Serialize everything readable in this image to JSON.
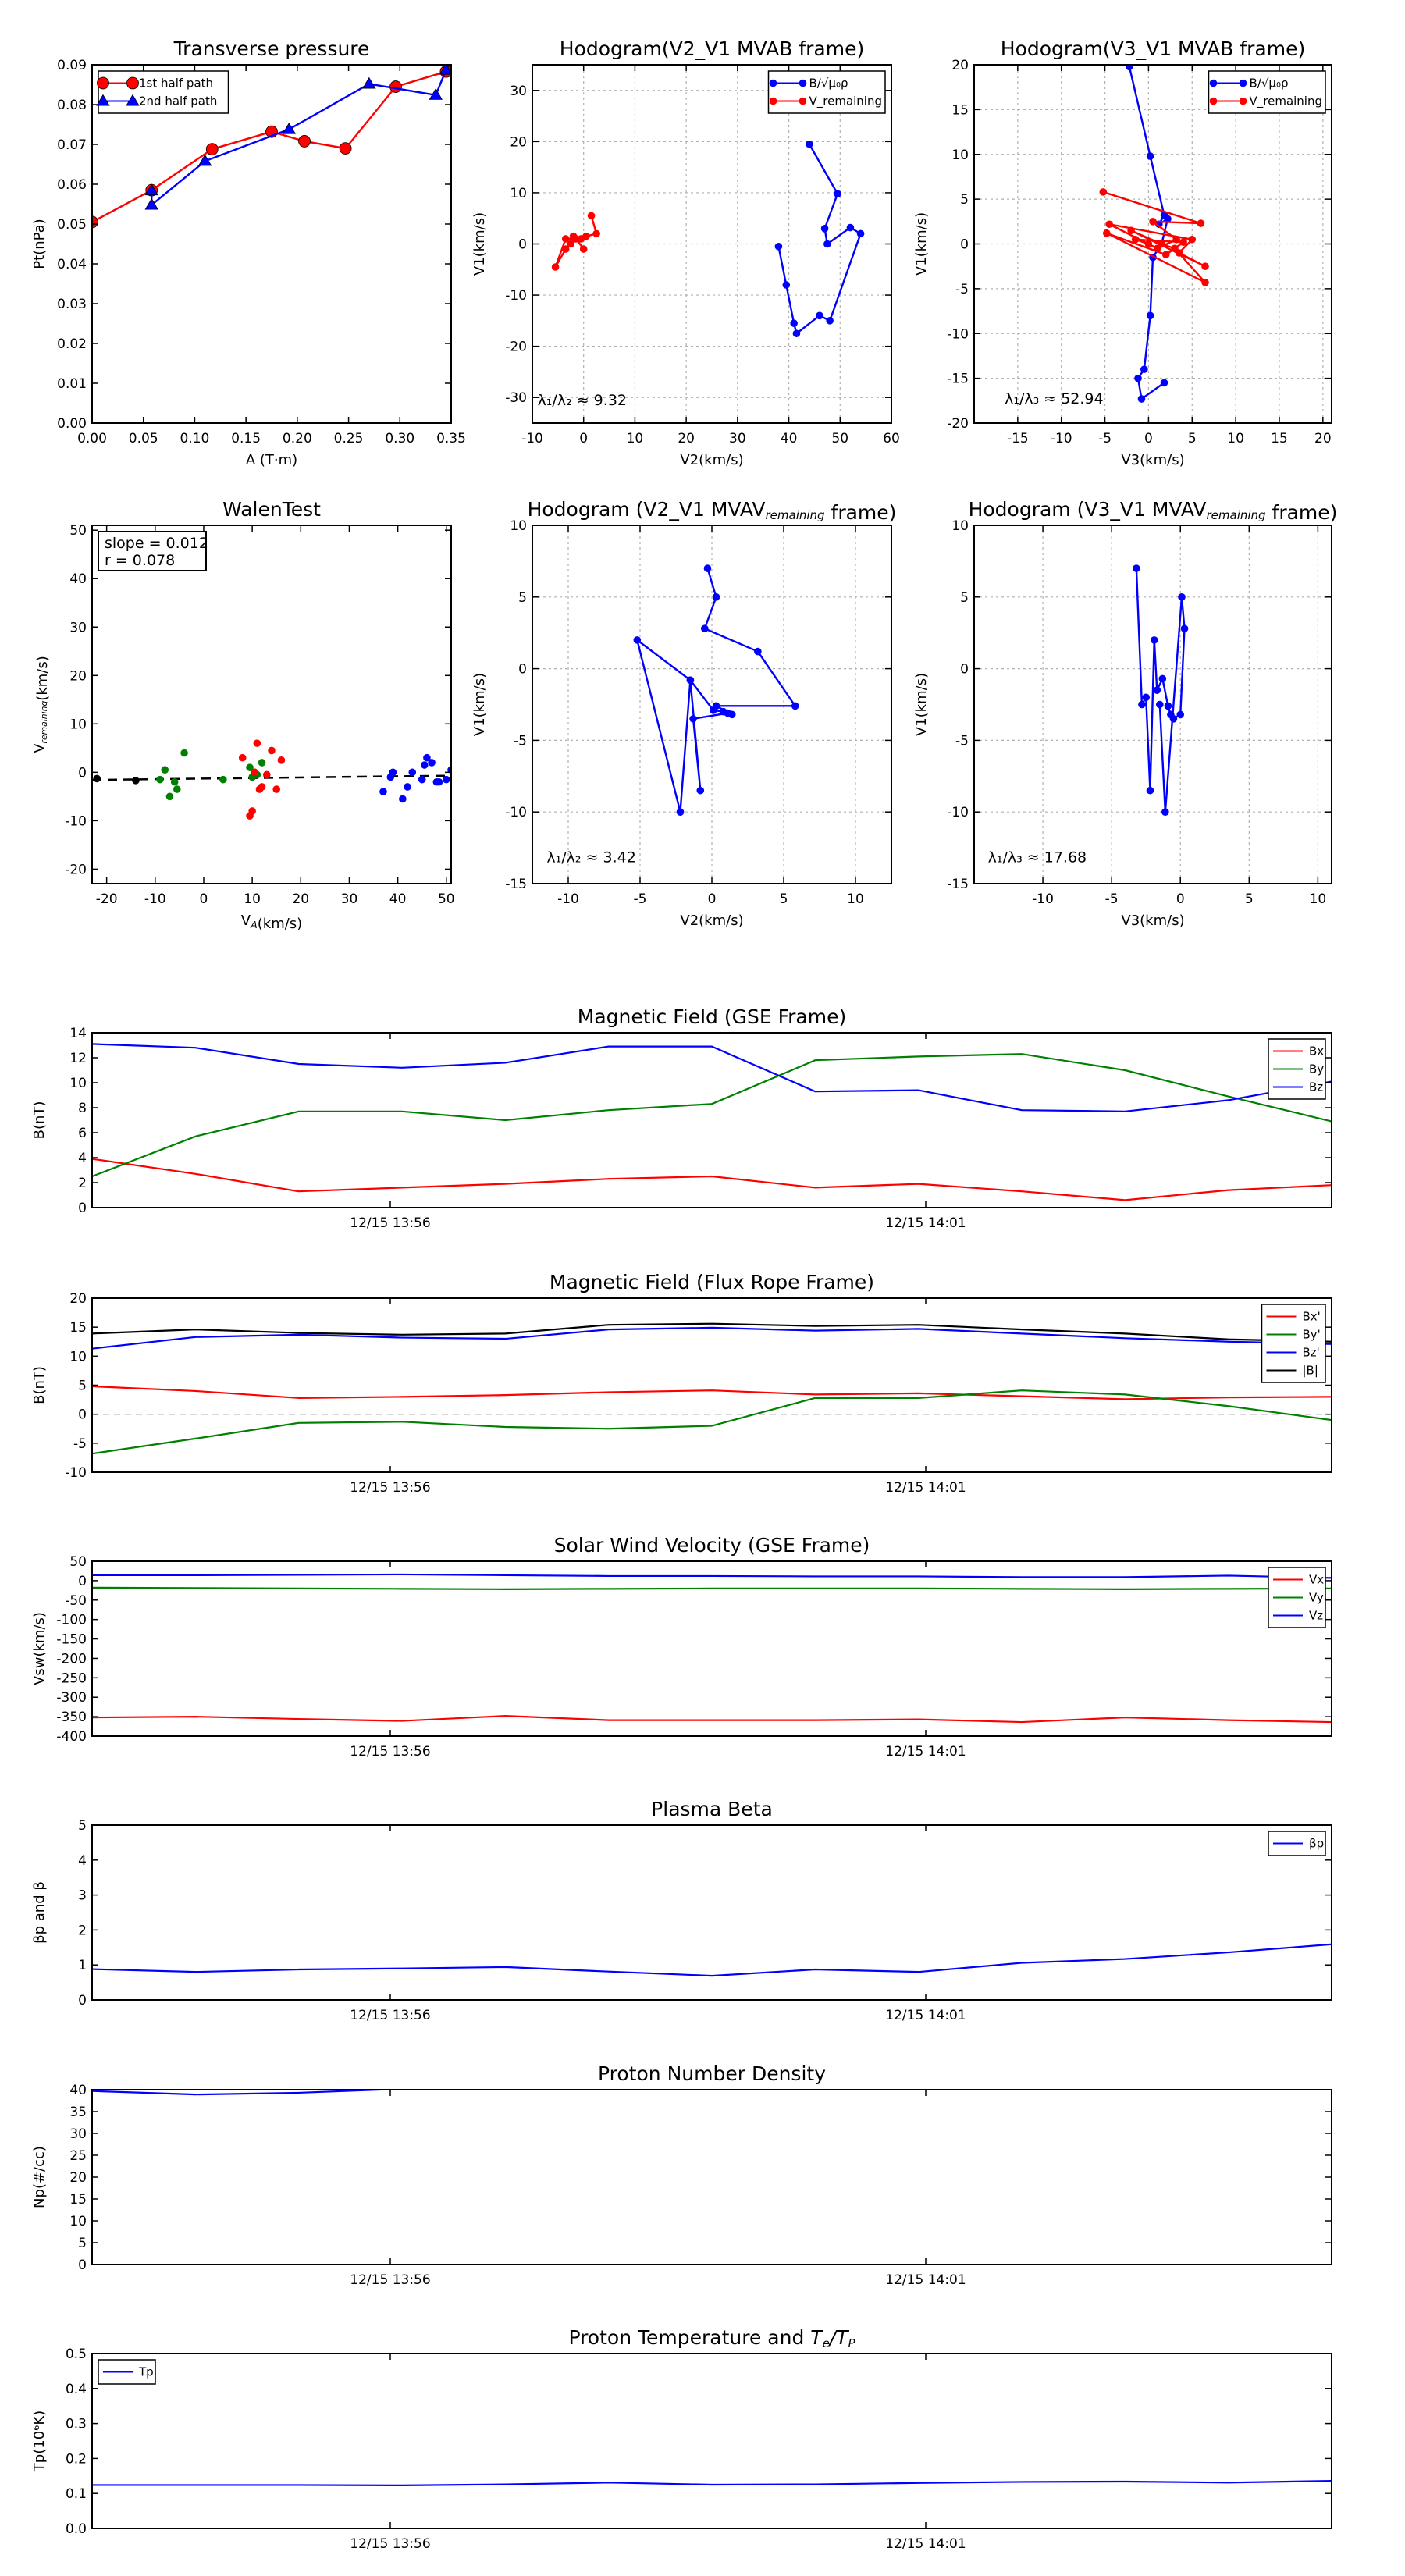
{
  "colors": {
    "red": "#ff0000",
    "blue": "#0000ff",
    "green": "#008000",
    "black": "#000000"
  },
  "chart_data": [
    {
      "id": "tp",
      "type": "line",
      "title": "Transverse pressure",
      "xlabel": "A (T·m)",
      "ylabel": "Pt(nPa)",
      "xlim": [
        0.0,
        0.35
      ],
      "ylim": [
        0.0,
        0.09
      ],
      "xticks": [
        "0.00",
        "0.05",
        "0.10",
        "0.15",
        "0.20",
        "0.25",
        "0.30",
        "0.35"
      ],
      "yticks": [
        "0.00",
        "0.01",
        "0.02",
        "0.03",
        "0.04",
        "0.05",
        "0.06",
        "0.07",
        "0.08",
        "0.09"
      ],
      "legend_loc": "upper-left",
      "grid": false,
      "series": [
        {
          "name": "1st half path",
          "color": "red",
          "marker": "circle",
          "x": [
            0.0,
            0.058,
            0.117,
            0.175,
            0.207,
            0.247,
            0.296,
            0.345
          ],
          "y": [
            0.0505,
            0.0585,
            0.0688,
            0.0732,
            0.0708,
            0.069,
            0.0845,
            0.0883
          ]
        },
        {
          "name": "2nd half path",
          "color": "blue",
          "marker": "triangle",
          "x": [
            0.345,
            0.335,
            0.27,
            0.192,
            0.11,
            0.058,
            0.058
          ],
          "y": [
            0.0887,
            0.0824,
            0.0852,
            0.0738,
            0.0658,
            0.0548,
            0.0584
          ]
        }
      ]
    },
    {
      "id": "h1",
      "type": "scatter",
      "title": "Hodogram(V2_V1 MVAB frame)",
      "xlabel": "V2(km/s)",
      "ylabel": "V1(km/s)",
      "xlim": [
        -10,
        60
      ],
      "ylim": [
        -35,
        35
      ],
      "xticks": [
        "-10",
        "0",
        "10",
        "20",
        "30",
        "40",
        "50",
        "60"
      ],
      "yticks": [
        "-30",
        "-20",
        "-10",
        "0",
        "10",
        "20",
        "30"
      ],
      "legend_loc": "upper-right",
      "grid": true,
      "annotation": {
        "text": "λ₁/λ₂ ≈ 9.32",
        "x": -9,
        "y": -31.5
      },
      "series": [
        {
          "name": "B/√μ₀ρ",
          "color": "blue",
          "marker": "dot",
          "x": [
            44,
            49.5,
            47,
            47.5,
            52,
            54,
            48,
            46,
            41.5,
            41,
            39.5,
            38
          ],
          "y": [
            19.5,
            9.8,
            3,
            0,
            3.2,
            2,
            -15,
            -14,
            -17.5,
            -15.5,
            -8,
            -0.5
          ]
        },
        {
          "name": "V_remaining",
          "color": "red",
          "marker": "dot",
          "x": [
            1.5,
            2.5,
            0.5,
            -0.5,
            -2,
            -2.5,
            -3.5,
            -5.5,
            -3.5,
            -1.5,
            0
          ],
          "y": [
            5.5,
            2,
            1.5,
            1,
            1.5,
            0,
            -1,
            -4.5,
            1,
            1,
            -1
          ]
        }
      ]
    },
    {
      "id": "h2",
      "type": "scatter",
      "title": "Hodogram(V3_V1 MVAB frame)",
      "xlabel": "V3(km/s)",
      "ylabel": "V1(km/s)",
      "xlim": [
        -20,
        21
      ],
      "ylim": [
        -20,
        20
      ],
      "xticks": [
        "-15",
        "-10",
        "-5",
        "0",
        "5",
        "10",
        "15",
        "20"
      ],
      "yticks": [
        "-20",
        "-15",
        "-10",
        "-5",
        "0",
        "5",
        "10",
        "15",
        "20"
      ],
      "legend_loc": "upper-right",
      "grid": true,
      "annotation": {
        "text": "λ₁/λ₃ ≈ 52.94",
        "x": -16.5,
        "y": -17.8
      },
      "series": [
        {
          "name": "B/√μ₀ρ",
          "color": "blue",
          "marker": "dot",
          "x": [
            -2.2,
            0.2,
            1.8,
            1.2,
            2.2,
            1.5,
            0.5,
            0.2,
            -0.5,
            -1.2,
            -0.8,
            1.8
          ],
          "y": [
            19.8,
            9.8,
            3.2,
            2.2,
            2.8,
            0,
            -1.5,
            -8,
            -14,
            -15,
            -17.3,
            -15.5
          ]
        },
        {
          "name": "V_remaining",
          "color": "red",
          "marker": "dot",
          "x": [
            -5.2,
            6,
            0.5,
            3.2,
            1,
            -4.5,
            5,
            3.5,
            6.5,
            -2,
            1.5,
            3,
            6.5,
            -4.8,
            2,
            4,
            -1.5,
            0
          ],
          "y": [
            5.8,
            2.3,
            2.5,
            0.5,
            -0.5,
            2.2,
            0.5,
            -1,
            -2.5,
            1.5,
            0,
            -0.5,
            -4.3,
            1.2,
            -1.2,
            0.2,
            0.5,
            0
          ]
        }
      ]
    },
    {
      "id": "walen",
      "type": "scatter",
      "title": "WalenTest",
      "xlabel": "V_A(km/s)",
      "ylabel": "V_remaining(km/s)",
      "xlim": [
        -23,
        51
      ],
      "ylim": [
        -23,
        51
      ],
      "xticks": [
        "-20",
        "-10",
        "0",
        "10",
        "20",
        "30",
        "40",
        "50"
      ],
      "yticks": [
        "-20",
        "-10",
        "0",
        "10",
        "20",
        "30",
        "40",
        "50"
      ],
      "legend_loc": "",
      "grid": false,
      "textbox": [
        "slope = 0.012",
        "r = 0.078"
      ],
      "fit": {
        "slope": 0.012,
        "intercept": -1.3
      },
      "series": [
        {
          "name": "",
          "color": "black",
          "marker": "dot",
          "x": [
            -22,
            -14
          ],
          "y": [
            -1.3,
            -1.7
          ]
        },
        {
          "name": "",
          "color": "green",
          "marker": "dot",
          "x": [
            -9,
            -8,
            -7,
            -6,
            -5.5,
            -4,
            4,
            9.5,
            10,
            11,
            12,
            10.5
          ],
          "y": [
            -1.5,
            0.5,
            -5,
            -2,
            -3.5,
            4,
            -1.5,
            1,
            -1,
            -0.5,
            2,
            0
          ]
        },
        {
          "name": "",
          "color": "red",
          "marker": "dot",
          "x": [
            8,
            10.5,
            11,
            11.5,
            12,
            13,
            14,
            15,
            16,
            9.5,
            10
          ],
          "y": [
            3,
            0,
            6,
            -3.5,
            -3,
            -0.5,
            4.5,
            -3.5,
            2.5,
            -9,
            -8
          ]
        },
        {
          "name": "",
          "color": "blue",
          "marker": "dot",
          "x": [
            37,
            38.5,
            39,
            41,
            42,
            43,
            45,
            45.5,
            46,
            47,
            48,
            48.5,
            50,
            51
          ],
          "y": [
            -4,
            -1,
            0,
            -5.5,
            -3,
            0,
            -1.5,
            1.5,
            3,
            2,
            -2,
            -2,
            -1.5,
            0.5
          ]
        }
      ]
    },
    {
      "id": "h3",
      "type": "line",
      "title": "Hodogram (V2_V1 MVAV_remaining frame)",
      "xlabel": "V2(km/s)",
      "ylabel": "V1(km/s)",
      "xlim": [
        -12.5,
        12.5
      ],
      "ylim": [
        -15,
        10
      ],
      "xticks": [
        "-10",
        "-5",
        "0",
        "5",
        "10"
      ],
      "yticks": [
        "-15",
        "-10",
        "-5",
        "0",
        "5",
        "10"
      ],
      "legend_loc": "",
      "grid": true,
      "annotation": {
        "text": "λ₁/λ₂ ≈ 3.42",
        "x": -11.5,
        "y": -13.5
      },
      "series": [
        {
          "name": "",
          "color": "blue",
          "marker": "dot",
          "x": [
            -0.3,
            0.3,
            -0.5,
            3.2,
            5.8,
            0.3,
            1.4,
            1.1,
            -1.3,
            -0.8,
            -1.5,
            -2.2,
            -5.2,
            -1.5,
            0.1,
            0.8
          ],
          "y": [
            7,
            5,
            2.8,
            1.2,
            -2.6,
            -2.6,
            -3.2,
            -3.1,
            -3.5,
            -8.5,
            -0.8,
            -10,
            2,
            -0.8,
            -2.9,
            -3
          ]
        }
      ]
    },
    {
      "id": "h4",
      "type": "line",
      "title": "Hodogram (V3_V1 MVAV_remaining frame)",
      "xlabel": "V3(km/s)",
      "ylabel": "V1(km/s)",
      "xlim": [
        -15,
        11
      ],
      "ylim": [
        -15,
        10
      ],
      "xticks": [
        "-10",
        "-5",
        "0",
        "5",
        "10"
      ],
      "yticks": [
        "-15",
        "-10",
        "-5",
        "0",
        "5",
        "10"
      ],
      "legend_loc": "",
      "grid": true,
      "annotation": {
        "text": "λ₁/λ₃ ≈ 17.68",
        "x": -14,
        "y": -13.5
      },
      "series": [
        {
          "name": "",
          "color": "blue",
          "marker": "dot",
          "x": [
            -3.2,
            -2.8,
            -2.5,
            -2.2,
            -1.9,
            -1.7,
            -1.3,
            -0.9,
            -0.7,
            -0.5,
            0,
            0.3,
            0.1,
            -1.1,
            -1.5
          ],
          "y": [
            7,
            -2.5,
            -2,
            -8.5,
            2,
            -1.5,
            -0.7,
            -2.6,
            -3.2,
            -3.5,
            -3.2,
            2.8,
            5,
            -10,
            -2.5
          ]
        }
      ]
    },
    {
      "id": "mag_gse",
      "type": "line",
      "title": "Magnetic Field (GSE Frame)",
      "xlabel": "",
      "ylabel": "B(nT)",
      "time_ticks": [
        "12/15 13:56",
        "12/15 14:01"
      ],
      "ylim": [
        0,
        14
      ],
      "yticks": [
        "0",
        "2",
        "4",
        "6",
        "8",
        "10",
        "12",
        "14"
      ],
      "legend_loc": "upper-right",
      "grid": false,
      "zero_line": false,
      "series": [
        {
          "name": "Bx",
          "color": "red",
          "values": [
            3.9,
            2.7,
            1.3,
            1.6,
            1.9,
            2.3,
            2.5,
            1.6,
            1.9,
            1.3,
            0.6,
            1.4,
            1.8
          ]
        },
        {
          "name": "By",
          "color": "green",
          "values": [
            2.5,
            5.7,
            7.7,
            7.7,
            7.0,
            7.8,
            8.3,
            11.8,
            12.1,
            12.3,
            11.0,
            8.9,
            6.9
          ]
        },
        {
          "name": "Bz",
          "color": "blue",
          "values": [
            13.1,
            12.8,
            11.5,
            11.2,
            11.6,
            12.9,
            12.9,
            9.3,
            9.4,
            7.8,
            7.7,
            8.6,
            10.1
          ]
        }
      ]
    },
    {
      "id": "mag_fr",
      "type": "line",
      "title": "Magnetic Field (Flux Rope Frame)",
      "xlabel": "",
      "ylabel": "B(nT)",
      "time_ticks": [
        "12/15 13:56",
        "12/15 14:01"
      ],
      "ylim": [
        -10,
        20
      ],
      "yticks": [
        "-10",
        "-5",
        "0",
        "5",
        "10",
        "15",
        "20"
      ],
      "legend_loc": "upper-right",
      "grid": false,
      "zero_line": true,
      "series": [
        {
          "name": "Bx'",
          "color": "red",
          "values": [
            4.8,
            4.0,
            2.8,
            3.0,
            3.3,
            3.8,
            4.1,
            3.4,
            3.6,
            3.1,
            2.6,
            2.9,
            3.0
          ]
        },
        {
          "name": "By'",
          "color": "green",
          "values": [
            -6.8,
            -4.2,
            -1.5,
            -1.3,
            -2.2,
            -2.5,
            -2.0,
            2.8,
            2.8,
            4.1,
            3.4,
            1.4,
            -1.0
          ]
        },
        {
          "name": "Bz'",
          "color": "blue",
          "values": [
            11.3,
            13.3,
            13.7,
            13.2,
            13.0,
            14.6,
            14.9,
            14.4,
            14.7,
            13.9,
            13.1,
            12.5,
            12.1
          ]
        },
        {
          "name": "|B|",
          "color": "black",
          "values": [
            13.9,
            14.6,
            14.0,
            13.7,
            13.9,
            15.4,
            15.6,
            15.2,
            15.4,
            14.6,
            13.9,
            12.9,
            12.5
          ]
        }
      ]
    },
    {
      "id": "vsw",
      "type": "line",
      "title": "Solar Wind Velocity (GSE Frame)",
      "xlabel": "",
      "ylabel": "Vsw(km/s)",
      "time_ticks": [
        "12/15 13:56",
        "12/15 14:01"
      ],
      "ylim": [
        -400,
        50
      ],
      "yticks": [
        "-400",
        "-350",
        "-300",
        "-250",
        "-200",
        "-150",
        "-100",
        "-50",
        "0",
        "50"
      ],
      "legend_loc": "upper-right",
      "grid": false,
      "zero_line": false,
      "series": [
        {
          "name": "Vx",
          "color": "red",
          "values": [
            -352,
            -350,
            -356,
            -361,
            -348,
            -359,
            -359,
            -359,
            -357,
            -364,
            -352,
            -359,
            -364
          ]
        },
        {
          "name": "Vy",
          "color": "green",
          "values": [
            -18,
            -19,
            -20,
            -21,
            -22,
            -21,
            -20,
            -20,
            -20,
            -21,
            -22,
            -21,
            -20
          ]
        },
        {
          "name": "Vz",
          "color": "blue",
          "values": [
            14,
            14,
            15,
            16,
            14,
            12,
            12,
            11,
            11,
            9,
            9,
            13,
            7
          ]
        }
      ]
    },
    {
      "id": "beta",
      "type": "line",
      "title": "Plasma Beta",
      "xlabel": "",
      "ylabel": "βp and β",
      "time_ticks": [
        "12/15 13:56",
        "12/15 14:01"
      ],
      "ylim": [
        0,
        5
      ],
      "yticks": [
        "0",
        "1",
        "2",
        "3",
        "4",
        "5"
      ],
      "legend_loc": "upper-right",
      "grid": false,
      "zero_line": false,
      "series": [
        {
          "name": "βp",
          "color": "blue",
          "values": [
            0.88,
            0.8,
            0.87,
            0.9,
            0.94,
            0.81,
            0.69,
            0.87,
            0.8,
            1.06,
            1.17,
            1.36,
            1.59
          ]
        }
      ]
    },
    {
      "id": "np",
      "type": "line",
      "title": "Proton Number Density",
      "xlabel": "",
      "ylabel": "Np(#/cc)",
      "time_ticks": [
        "12/15 13:56",
        "12/15 14:01"
      ],
      "ylim": [
        0,
        40
      ],
      "yticks": [
        "0",
        "5",
        "10",
        "15",
        "20",
        "25",
        "30",
        "35",
        "40"
      ],
      "legend_loc": "",
      "grid": false,
      "zero_line": false,
      "series": [
        {
          "name": "",
          "color": "blue",
          "values": [
            39.7,
            38.9,
            39.3,
            40.2,
            41,
            41.5,
            40.6,
            41.5,
            42,
            42,
            42,
            42,
            42
          ]
        }
      ]
    },
    {
      "id": "tp_temp",
      "type": "line",
      "title": "Proton Temperature and Te/Tp",
      "xlabel": "",
      "ylabel": "Tp(10⁶K)",
      "time_ticks": [
        "12/15 13:56",
        "12/15 14:01"
      ],
      "ylim": [
        0,
        0.5
      ],
      "yticks": [
        "0.0",
        "0.1",
        "0.2",
        "0.3",
        "0.4",
        "0.5"
      ],
      "legend_loc": "upper-left",
      "grid": false,
      "zero_line": false,
      "series": [
        {
          "name": "Tp",
          "color": "blue",
          "values": [
            0.124,
            0.124,
            0.124,
            0.123,
            0.126,
            0.131,
            0.125,
            0.126,
            0.13,
            0.133,
            0.134,
            0.131,
            0.136
          ]
        }
      ]
    }
  ]
}
